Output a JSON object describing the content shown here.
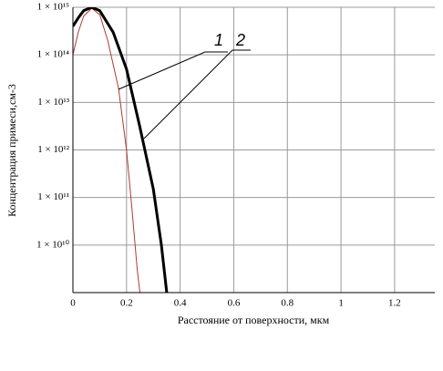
{
  "chart_data": {
    "type": "line",
    "x_label": "Расстояние от поверхности, мкм",
    "y_label": "Концентрация примеси,см-3",
    "log_y": true,
    "grid": true,
    "xlim": [
      0,
      1.35
    ],
    "xticks": [
      0,
      0.2,
      0.4,
      0.6,
      0.8,
      1,
      1.2
    ],
    "ylim": [
      1000000000.0,
      1000000000000000.0
    ],
    "yticks": [
      {
        "value": 10000000000.0,
        "label": "1 × 10¹⁰"
      },
      {
        "value": 100000000000.0,
        "label": "1 × 10¹¹"
      },
      {
        "value": 1000000000000.0,
        "label": "1 × 10¹²"
      },
      {
        "value": 10000000000000.0,
        "label": "1 × 10¹³"
      },
      {
        "value": 100000000000000.0,
        "label": "1 × 10¹⁴"
      },
      {
        "value": 1000000000000000.0,
        "label": "1 × 10¹⁵"
      }
    ],
    "series": [
      {
        "name": "1",
        "color": "#b03a2e",
        "line_width": 1,
        "x": [
          0,
          0.02,
          0.04,
          0.07,
          0.1,
          0.13,
          0.17,
          0.2,
          0.22,
          0.24,
          0.25
        ],
        "values": [
          100000000000000.0,
          300000000000000.0,
          650000000000000.0,
          950000000000000.0,
          700000000000000.0,
          200000000000000.0,
          20000000000000.0,
          1000000000000.0,
          60000000000.0,
          3000000000.0,
          1000000000.0
        ]
      },
      {
        "name": "2",
        "color": "#000000",
        "line_width": 3,
        "x": [
          0,
          0.02,
          0.04,
          0.07,
          0.1,
          0.15,
          0.2,
          0.25,
          0.3,
          0.33,
          0.35
        ],
        "values": [
          400000000000000.0,
          600000000000000.0,
          850000000000000.0,
          1000000000000000.0,
          850000000000000.0,
          300000000000000.0,
          50000000000000.0,
          3000000000000.0,
          150000000000.0,
          10000000000.0,
          1000000000.0
        ]
      }
    ]
  }
}
